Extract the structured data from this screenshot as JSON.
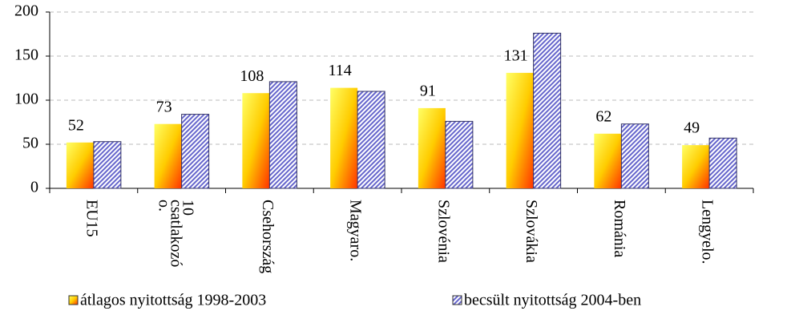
{
  "chart_data": {
    "type": "bar",
    "categories": [
      "EU15",
      "10 csatlakozó o.",
      "Csehország",
      "Magyaro.",
      "Szlovénia",
      "Szlovákia",
      "Románia",
      "Lengyelo."
    ],
    "series": [
      {
        "name": "átlagos nyitottság 1998-2003",
        "color": "#ffcc00",
        "values": [
          52,
          73,
          108,
          114,
          91,
          131,
          62,
          49
        ],
        "show_labels": true
      },
      {
        "name": "becsült nyitottság 2004-ben",
        "color": "#6666cc",
        "values": [
          53,
          84,
          121,
          110,
          76,
          176,
          73,
          57
        ]
      }
    ],
    "ylim": [
      0,
      200
    ],
    "yticks": [
      0,
      50,
      100,
      150,
      200
    ],
    "grid": true,
    "legend": "bottom"
  }
}
